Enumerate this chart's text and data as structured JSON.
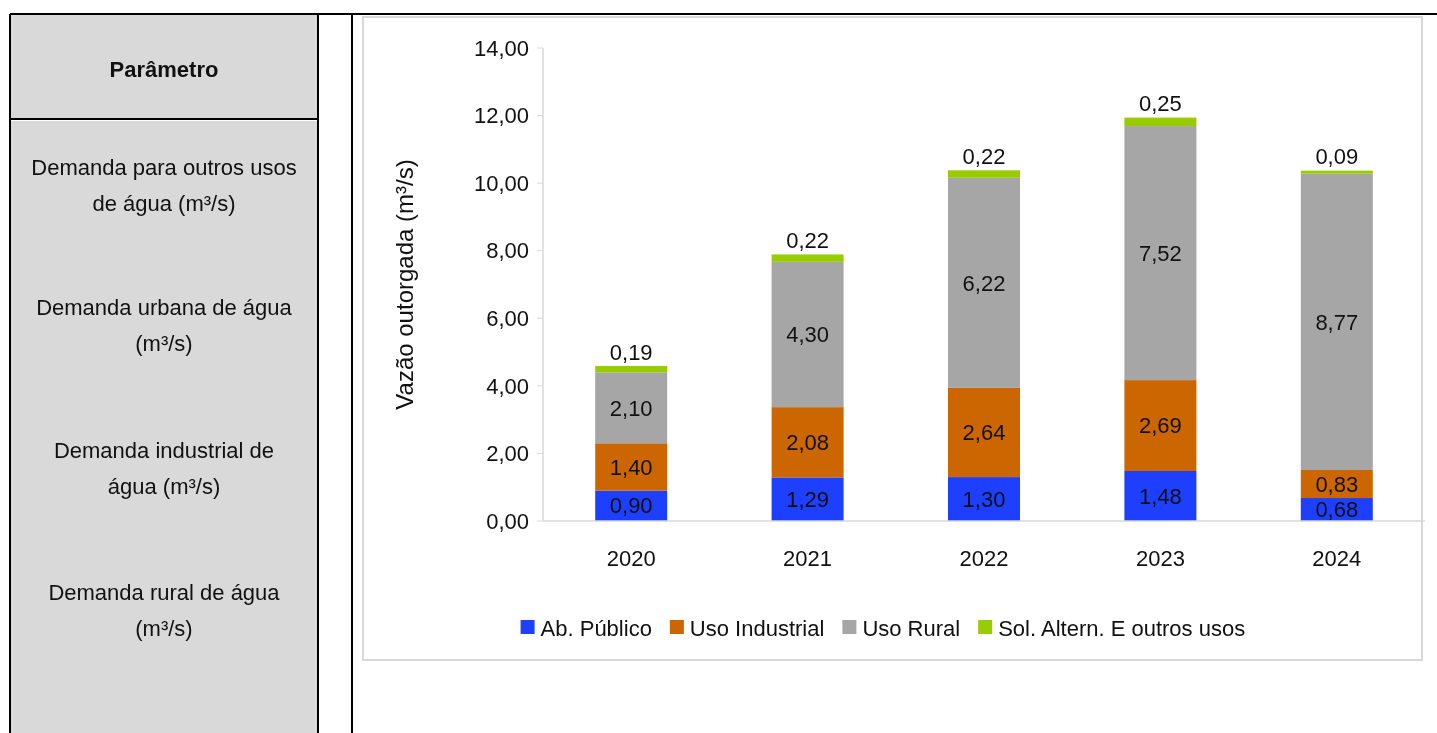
{
  "chart_data": {
    "type": "bar",
    "stacked": true,
    "ylabel": "Vazão outorgada (m³/s)",
    "categories": [
      "2020",
      "2021",
      "2022",
      "2023",
      "2024"
    ],
    "series": [
      {
        "name": "Ab. Público",
        "color": "#1f3fff",
        "values": [
          0.9,
          1.29,
          1.3,
          1.48,
          0.68
        ],
        "value_labels": [
          "0,90",
          "1,29",
          "1,30",
          "1,48",
          "0,68"
        ]
      },
      {
        "name": "Uso Industrial",
        "color": "#cc6600",
        "values": [
          1.4,
          2.08,
          2.64,
          2.69,
          0.83
        ],
        "value_labels": [
          "1,40",
          "2,08",
          "2,64",
          "2,69",
          "0,83"
        ]
      },
      {
        "name": "Uso Rural",
        "color": "#a6a6a6",
        "values": [
          2.1,
          4.3,
          6.22,
          7.52,
          8.77
        ],
        "value_labels": [
          "2,10",
          "4,30",
          "6,22",
          "7,52",
          "8,77"
        ]
      },
      {
        "name": "Sol. Altern. E outros usos",
        "color": "#99cc00",
        "values": [
          0.19,
          0.22,
          0.22,
          0.25,
          0.09
        ],
        "value_labels": [
          "0,19",
          "0,22",
          "0,22",
          "0,25",
          "0,09"
        ]
      }
    ],
    "ylim": [
      0,
      14
    ],
    "yticks": [
      {
        "value": 0,
        "label": "0,00"
      },
      {
        "value": 2,
        "label": "2,00"
      },
      {
        "value": 4,
        "label": "4,00"
      },
      {
        "value": 6,
        "label": "6,00"
      },
      {
        "value": 8,
        "label": "8,00"
      },
      {
        "value": 10,
        "label": "10,00"
      },
      {
        "value": 12,
        "label": "12,00"
      },
      {
        "value": 14,
        "label": "14,00"
      }
    ],
    "grid": false,
    "legend": "bottom",
    "annotations": [
      "Parâmetro",
      "Demanda para outros usos de água (m³/s)",
      "Demanda urbana de água (m³/s)",
      "Demanda industrial de água (m³/s)",
      "Demanda rural de água (m³/s)"
    ]
  }
}
